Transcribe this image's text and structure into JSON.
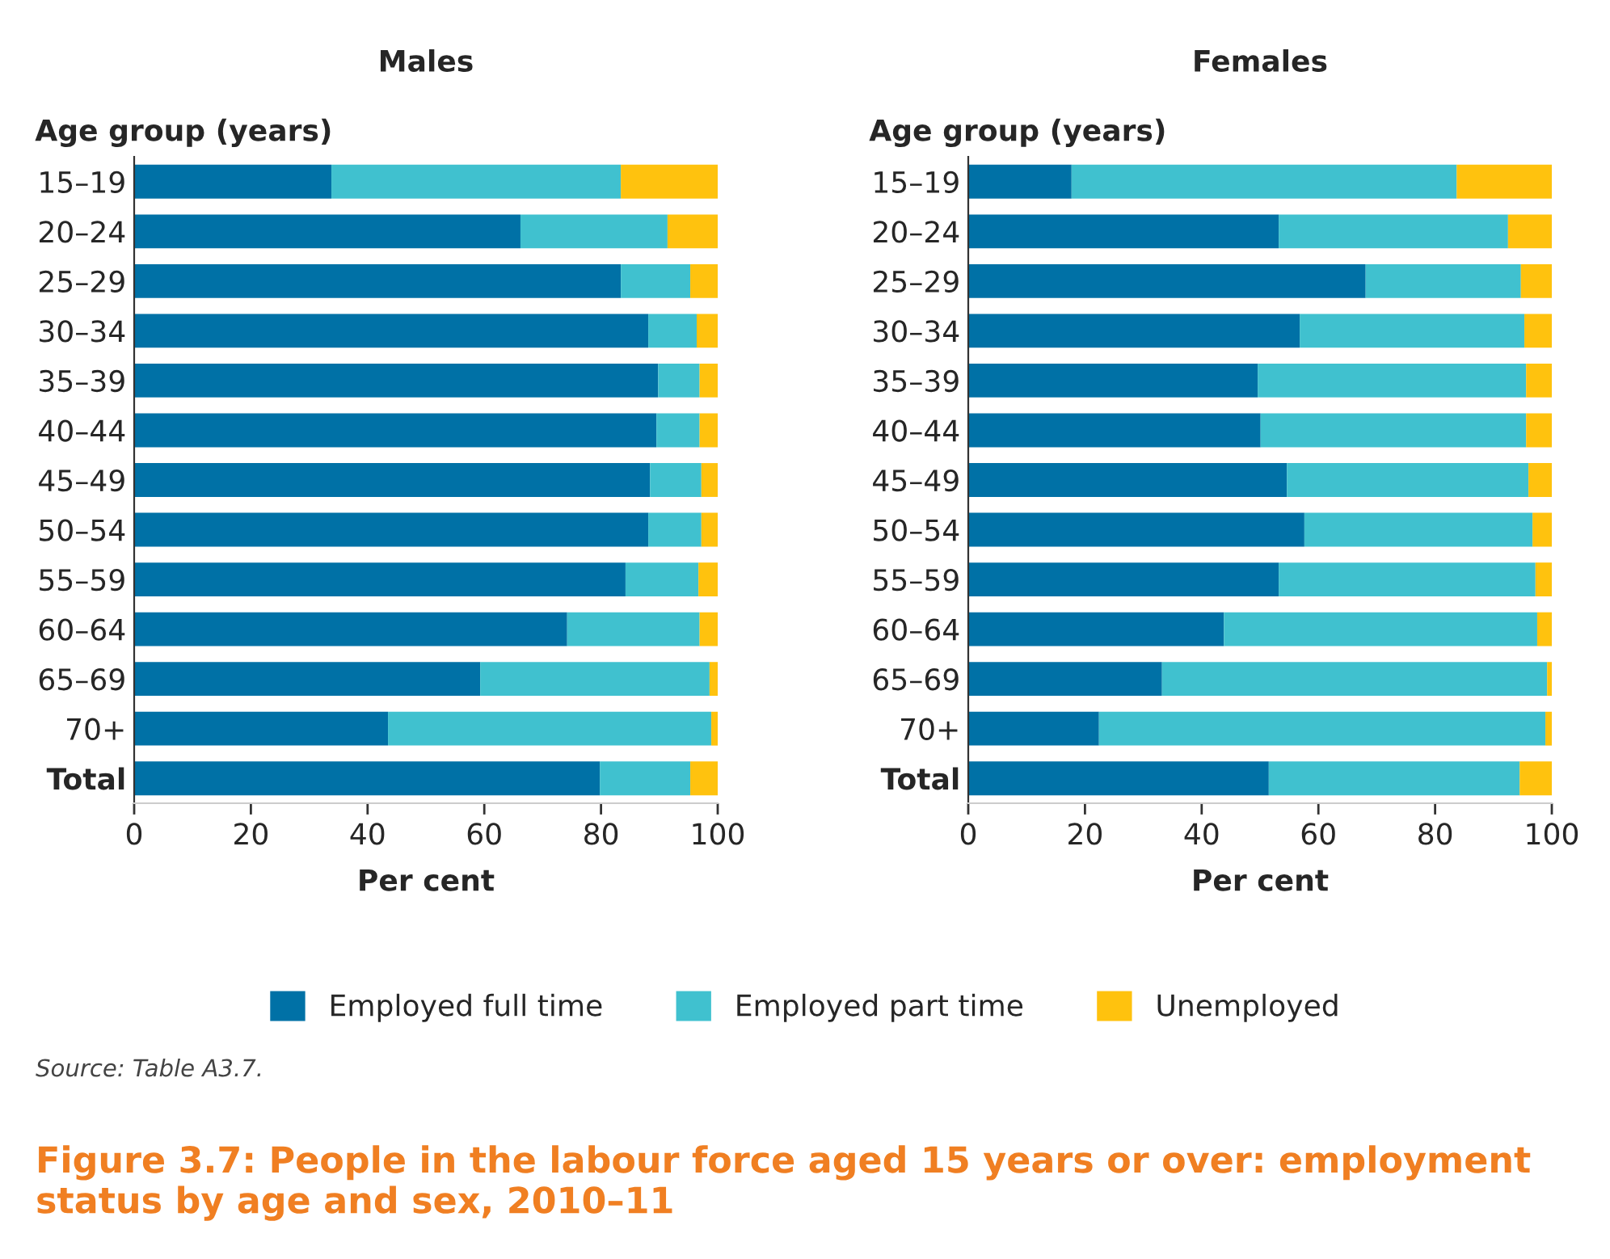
{
  "chart_data": [
    {
      "type": "bar",
      "orientation": "horizontal",
      "stacked": true,
      "title": "Males",
      "ylabel": "Age group (years)",
      "xlabel": "Per cent",
      "categories": [
        "15–19",
        "20–24",
        "25–29",
        "30–34",
        "35–39",
        "40–44",
        "45–49",
        "50–54",
        "55–59",
        "60–64",
        "65–69",
        "70+",
        "Total"
      ],
      "series": [
        {
          "name": "Employed full time",
          "color": "#0071a6",
          "values": [
            33.8,
            66.2,
            83.4,
            88.1,
            89.8,
            89.5,
            88.4,
            88.1,
            84.2,
            74.2,
            59.3,
            43.5,
            79.8
          ]
        },
        {
          "name": "Employed part time",
          "color": "#40c1cf",
          "values": [
            49.6,
            25.2,
            11.9,
            8.3,
            7.1,
            7.4,
            8.8,
            9.1,
            12.5,
            22.7,
            39.3,
            55.4,
            15.5
          ]
        },
        {
          "name": "Unemployed",
          "color": "#ffc20e",
          "values": [
            16.6,
            8.6,
            4.7,
            3.6,
            3.1,
            3.1,
            2.8,
            2.8,
            3.3,
            3.1,
            1.4,
            1.1,
            4.7
          ]
        }
      ],
      "xlim": [
        0,
        100
      ],
      "xticks": [
        0,
        20,
        40,
        60,
        80,
        100
      ],
      "grid": false,
      "legend": "bottom",
      "annotations": [
        "Source: Table A3.7.",
        "Figure 3.7: People in the labour force aged 15 years or over: employment status by age and sex, 2010–11"
      ]
    },
    {
      "type": "bar",
      "orientation": "horizontal",
      "stacked": true,
      "title": "Females",
      "ylabel": "Age group (years)",
      "xlabel": "Per cent",
      "categories": [
        "15–19",
        "20–24",
        "25–29",
        "30–34",
        "35–39",
        "40–44",
        "45–49",
        "50–54",
        "55–59",
        "60–64",
        "65–69",
        "70+",
        "Total"
      ],
      "series": [
        {
          "color": "#0071a6",
          "values": [
            17.7,
            53.2,
            68.1,
            56.8,
            49.6,
            50.1,
            54.6,
            57.6,
            53.2,
            43.8,
            33.2,
            22.4,
            51.5
          ]
        },
        {
          "color": "#40c1cf",
          "values": [
            66.0,
            39.3,
            26.6,
            38.5,
            46.0,
            45.5,
            41.4,
            39.1,
            44.0,
            53.7,
            66.0,
            76.5,
            43.0
          ]
        },
        {
          "color": "#ffc20e",
          "values": [
            16.3,
            7.5,
            5.3,
            4.7,
            4.4,
            4.4,
            4.0,
            3.3,
            2.8,
            2.5,
            0.8,
            1.1,
            5.5
          ]
        }
      ],
      "xlim": [
        0,
        100
      ],
      "xticks": [
        0,
        20,
        40,
        60,
        80,
        100
      ],
      "grid": false
    }
  ]
}
